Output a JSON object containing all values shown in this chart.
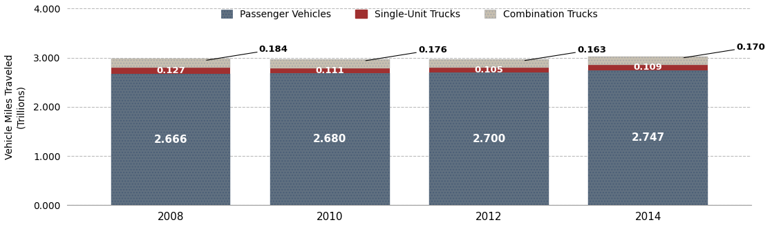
{
  "years": [
    "2008",
    "2010",
    "2012",
    "2014"
  ],
  "passenger_vehicles": [
    2.666,
    2.68,
    2.7,
    2.747
  ],
  "single_unit_trucks": [
    0.127,
    0.111,
    0.105,
    0.109
  ],
  "combination_trucks": [
    0.184,
    0.176,
    0.163,
    0.17
  ],
  "passenger_color": "#607080",
  "single_unit_color": "#a03030",
  "combination_color": "#c8c0b0",
  "ylabel": "Vehicle Miles Traveled\n(Trillions)",
  "ylim": [
    0,
    4.0
  ],
  "yticks": [
    0.0,
    1.0,
    2.0,
    3.0,
    4.0
  ],
  "ytick_labels": [
    "0.000",
    "1.000",
    "2.000",
    "3.000",
    "4.000"
  ],
  "legend_labels": [
    "Passenger Vehicles",
    "Single-Unit Trucks",
    "Combination Trucks"
  ],
  "background_color": "#ffffff",
  "bar_width": 0.75
}
